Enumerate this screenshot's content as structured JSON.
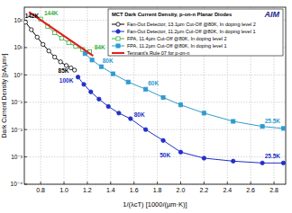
{
  "chart_data": {
    "type": "line",
    "title": "MCT Dark Current Density, p-on-n Planar Diodes",
    "logo": "AIM",
    "x_label": "1/(λcT) [1000/(µm·K)]",
    "y_label": "Dark Current Density [pA/µm²]",
    "log": "y",
    "grid": true,
    "legend": "upper right",
    "xlim": [
      0.66,
      2.9
    ],
    "ylim": [
      0.0001,
      300
    ],
    "xticks": [
      0.8,
      {
        "value": 1,
        "label": "1.0"
      },
      1.2,
      1.4,
      1.6,
      1.8,
      {
        "value": 2,
        "label": "2.0"
      },
      2.2,
      2.4,
      2.6,
      2.8
    ],
    "yticks": [
      {
        "value": 0.0001,
        "label": "10⁻⁴"
      },
      {
        "value": 0.001,
        "label": "10⁻³"
      },
      {
        "value": 0.01,
        "label": "10⁻²"
      },
      {
        "value": 0.1,
        "label": "10⁻¹"
      },
      {
        "value": 1,
        "label": "10⁰"
      },
      {
        "value": 10,
        "label": "10¹"
      },
      {
        "value": 100,
        "label": "10²"
      }
    ],
    "series": [
      {
        "name": "Fan-Out Detector, 13.1µm Cut-Off @80K, In doping level 2",
        "color": "#000000",
        "marker": "circle-open",
        "line_style": "solid",
        "x": [
          0.67,
          0.72,
          0.77,
          0.82,
          0.87,
          0.92,
          0.97,
          1.02,
          1.06,
          1.09
        ],
        "values": [
          85,
          45,
          24,
          13,
          7.5,
          4.5,
          3,
          2.2,
          1.8,
          1.5
        ]
      },
      {
        "name": "Fan-Out Detector, 11.2µm Cut-Off @80K, In doping level 1",
        "color": "#2030c8",
        "marker": "circle",
        "line_style": "solid",
        "x": [
          1.12,
          1.17,
          1.23,
          1.3,
          1.38,
          1.47,
          1.57,
          1.7,
          1.85,
          2.0,
          2.2,
          2.45,
          2.7,
          2.88
        ],
        "values": [
          0.83,
          0.45,
          0.24,
          0.13,
          0.07,
          0.04,
          0.025,
          0.01,
          0.004,
          0.0015,
          0.0009,
          0.0007,
          0.0006,
          0.0006
        ]
      },
      {
        "name": "FPA, 11.4µm Cut-Off @80K, In doping level 2",
        "color": "#3cb043",
        "marker": "square-open",
        "line_style": "solid",
        "x": [
          0.8,
          0.86,
          0.92,
          0.98,
          1.04,
          1.1,
          1.16,
          1.22
        ],
        "values": [
          110,
          60,
          35,
          22,
          15,
          11,
          8.5,
          7
        ]
      },
      {
        "name": "FPA, 11.2µm Cut-Off @80K, In doping level 1",
        "color": "#2f9bd0",
        "marker": "square",
        "line_style": "solid",
        "x": [
          1.18,
          1.24,
          1.32,
          1.42,
          1.55,
          1.7,
          1.85,
          2.0,
          2.2,
          2.45,
          2.7,
          2.88
        ],
        "values": [
          6,
          3.5,
          2,
          1.1,
          0.55,
          0.3,
          0.15,
          0.08,
          0.04,
          0.02,
          0.013,
          0.011
        ]
      },
      {
        "name": "Tennant's Rule 07 for p-on-n",
        "color": "#e02020",
        "marker": "none",
        "line_style": "solid",
        "x": [
          0.7,
          1.25
        ],
        "values": [
          200,
          5
        ]
      }
    ],
    "annotations": [
      {
        "text": "142K",
        "x": 0.665,
        "y": 150,
        "color": "#000000"
      },
      {
        "text": "144K",
        "x": 0.83,
        "y": 180,
        "color": "#3cb043"
      },
      {
        "text": "85K",
        "x": 0.95,
        "y": 1.4,
        "color": "#000000"
      },
      {
        "text": "100K",
        "x": 0.96,
        "y": 0.6,
        "color": "#2030c8"
      },
      {
        "text": "84K",
        "x": 1.26,
        "y": 10,
        "color": "#3cb043"
      },
      {
        "text": "80K",
        "x": 1.33,
        "y": 3.2,
        "color": "#2f9bd0"
      },
      {
        "text": "60K",
        "x": 1.72,
        "y": 0.5,
        "color": "#2f9bd0"
      },
      {
        "text": "80K",
        "x": 1.6,
        "y": 0.035,
        "color": "#2030c8"
      },
      {
        "text": "50K",
        "x": 1.82,
        "y": 0.0012,
        "color": "#2030c8"
      },
      {
        "text": "25.5K",
        "x": 2.72,
        "y": 0.02,
        "color": "#2f9bd0"
      },
      {
        "text": "25.5K",
        "x": 2.72,
        "y": 0.0011,
        "color": "#2030c8"
      }
    ]
  }
}
